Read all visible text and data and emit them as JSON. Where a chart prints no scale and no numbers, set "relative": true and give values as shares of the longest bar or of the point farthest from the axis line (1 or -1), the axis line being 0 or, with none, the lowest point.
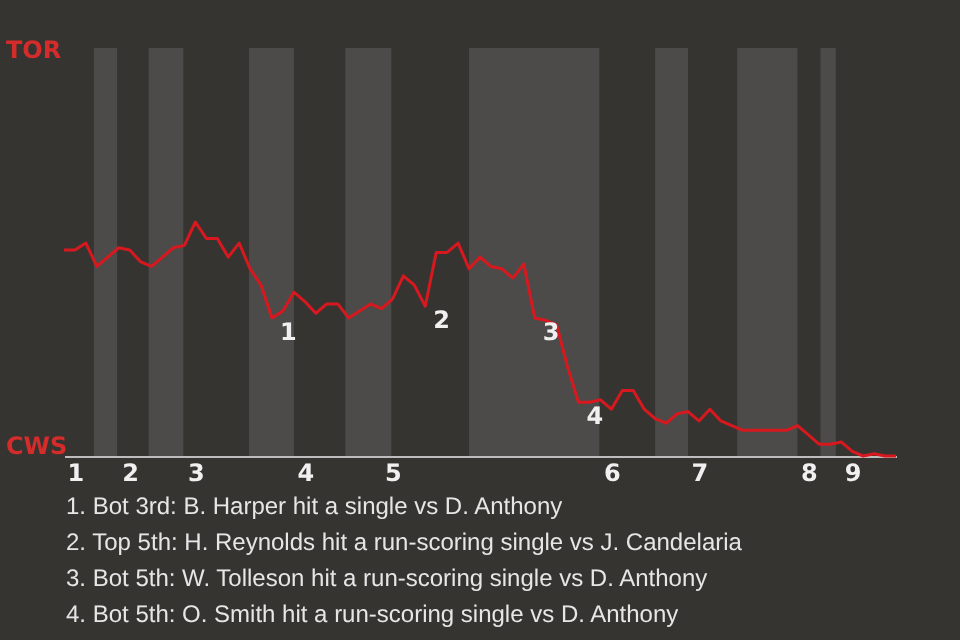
{
  "chart_data": {
    "type": "line",
    "categories": [
      null,
      "1",
      null,
      null,
      null,
      null,
      "2",
      null,
      null,
      null,
      null,
      null,
      "3",
      null,
      null,
      null,
      null,
      null,
      null,
      null,
      null,
      null,
      "4",
      null,
      null,
      null,
      null,
      null,
      null,
      null,
      "5",
      null,
      null,
      null,
      null,
      null,
      null,
      null,
      null,
      null,
      null,
      null,
      null,
      null,
      null,
      null,
      null,
      null,
      null,
      null,
      "6",
      null,
      null,
      null,
      null,
      null,
      null,
      null,
      "7",
      null,
      null,
      null,
      null,
      null,
      null,
      null,
      null,
      null,
      "8",
      null,
      null,
      null,
      "9",
      null,
      null,
      null,
      null
    ],
    "series": [
      {
        "color": "#d7191f",
        "values": [
          0.88,
          0.88,
          0.91,
          0.81,
          0.85,
          0.89,
          0.88,
          0.83,
          0.81,
          0.85,
          0.89,
          0.9,
          1,
          0.93,
          0.93,
          0.85,
          0.91,
          0.8,
          0.73,
          0.59,
          0.62,
          0.7,
          0.66,
          0.61,
          0.65,
          0.65,
          0.59,
          0.62,
          0.65,
          0.63,
          0.67,
          0.77,
          0.73,
          0.64,
          0.87,
          0.87,
          0.91,
          0.8,
          0.85,
          0.81,
          0.8,
          0.76,
          0.82,
          0.59,
          0.58,
          0.56,
          0.38,
          0.23,
          0.23,
          0.24,
          0.2,
          0.28,
          0.28,
          0.2,
          0.16,
          0.14,
          0.18,
          0.19,
          0.15,
          0.2,
          0.15,
          0.13,
          0.11,
          0.11,
          0.11,
          0.11,
          0.11,
          0.13,
          0.09,
          0.05,
          0.05,
          0.06,
          0.02,
          0,
          0.01,
          0,
          0
        ]
      }
    ],
    "relative": true,
    "annotations": [
      "1",
      "2",
      "3",
      "4",
      "TOR",
      "CWS",
      "1. Bot 3rd: B. Harper hit a single vs D. Anthony",
      "2. Top 5th: H. Reynolds hit a run-scoring single vs J. Candelaria",
      "3. Bot 5th: W. Tolleson hit a run-scoring single vs D. Anthony",
      "4. Bot 5th: O. Smith hit a run-scoring single vs D. Anthony"
    ]
  }
}
